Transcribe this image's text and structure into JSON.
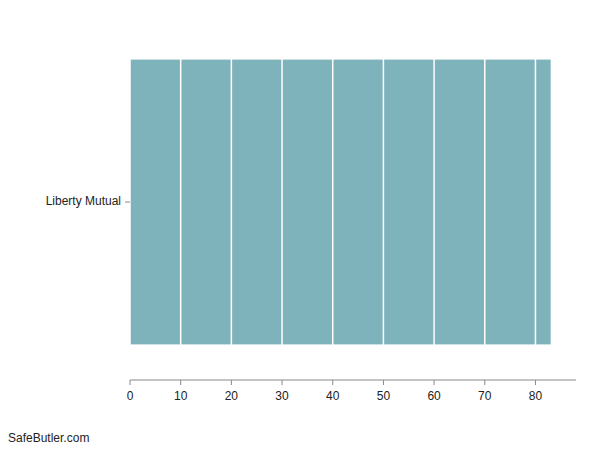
{
  "chart_data": {
    "type": "bar",
    "orientation": "horizontal",
    "categories": [
      "Liberty Mutual"
    ],
    "values": [
      83
    ],
    "color": "#7eb3bc",
    "xlim": [
      0,
      88
    ],
    "xticks": [
      0,
      10,
      20,
      30,
      40,
      50,
      60,
      70,
      80
    ],
    "grid": true,
    "annotations": [
      "SafeButler.com"
    ]
  }
}
